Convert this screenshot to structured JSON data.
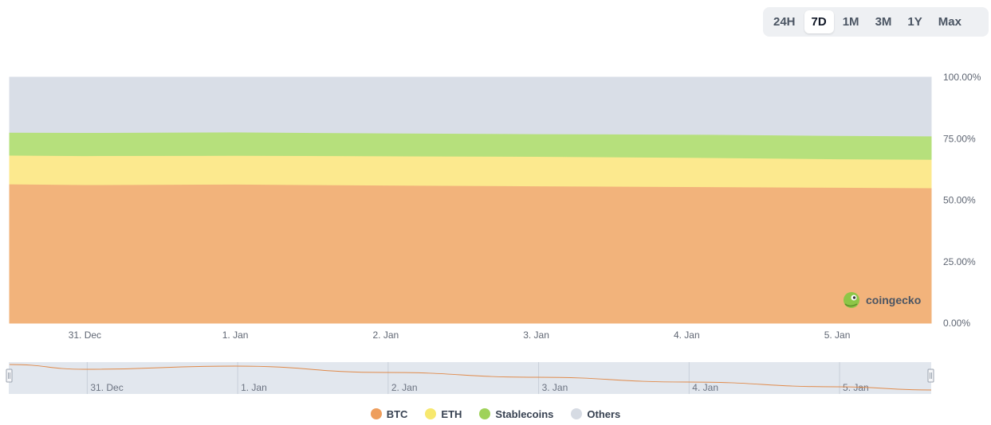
{
  "range_selector": {
    "options": [
      "24H",
      "7D",
      "1M",
      "3M",
      "1Y",
      "Max"
    ],
    "active": "7D"
  },
  "watermark": {
    "text": "coingecko"
  },
  "chart_data": {
    "type": "area",
    "stacking": "percent",
    "x": [
      "2024-12-30T12:00",
      "2024-12-31",
      "2025-01-01",
      "2025-01-02",
      "2025-01-03",
      "2025-01-04",
      "2025-01-05",
      "2025-01-05T15:00"
    ],
    "x_tick_labels": [
      "31. Dec",
      "1. Jan",
      "2. Jan",
      "3. Jan",
      "4. Jan",
      "5. Jan"
    ],
    "y_tick_labels": [
      "100.00%",
      "75.00%",
      "50.00%",
      "25.00%",
      "0.00%"
    ],
    "ylim": [
      0,
      100
    ],
    "series": [
      {
        "name": "BTC",
        "color": "#f2b37b",
        "values": [
          56.6,
          56.3,
          56.5,
          56.1,
          55.8,
          55.5,
          55.2,
          55.0
        ]
      },
      {
        "name": "ETH",
        "color": "#fce98e",
        "values": [
          11.7,
          11.8,
          11.7,
          11.9,
          12.0,
          11.9,
          11.6,
          11.6
        ]
      },
      {
        "name": "Stablecoins",
        "color": "#b6e07c",
        "values": [
          9.3,
          9.4,
          9.5,
          9.3,
          9.2,
          9.4,
          9.5,
          9.5
        ]
      },
      {
        "name": "Others",
        "color": "#d9dee7",
        "values": [
          22.4,
          22.5,
          22.3,
          22.7,
          23.0,
          23.2,
          23.7,
          23.9
        ]
      }
    ],
    "navigator": {
      "x_tick_labels": [
        "31. Dec",
        "1. Jan",
        "2. Jan",
        "3. Jan",
        "4. Jan",
        "5. Jan"
      ],
      "line_color": "#e08a4a"
    },
    "legend_position": "bottom-center",
    "grid": false
  }
}
